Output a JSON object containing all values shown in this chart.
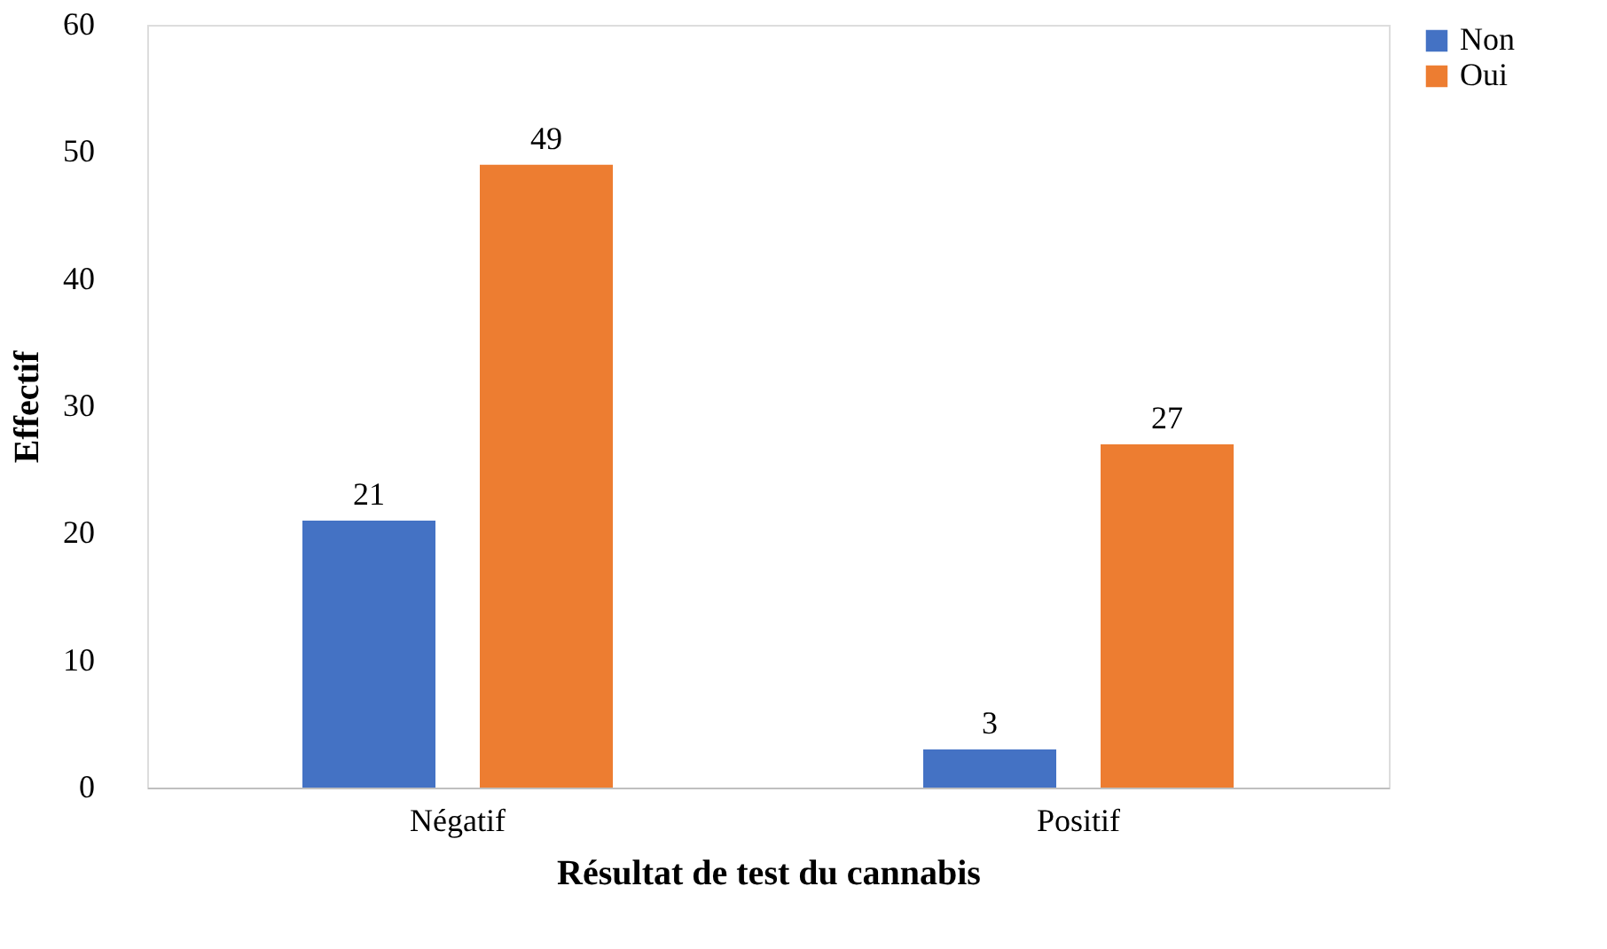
{
  "chart_data": {
    "type": "bar",
    "xlabel": "Résultat de test du cannabis",
    "ylabel": "Effectif",
    "categories": [
      "Négatif",
      "Positif"
    ],
    "series": [
      {
        "name": "Non",
        "color": "#4472c4",
        "values": [
          21,
          3
        ]
      },
      {
        "name": "Oui",
        "color": "#ed7d31",
        "values": [
          49,
          27
        ]
      }
    ],
    "ylim": [
      0,
      60
    ],
    "yticks": [
      0,
      10,
      20,
      30,
      40,
      50,
      60
    ],
    "grid": false,
    "legend": "right",
    "data_labels": true
  }
}
